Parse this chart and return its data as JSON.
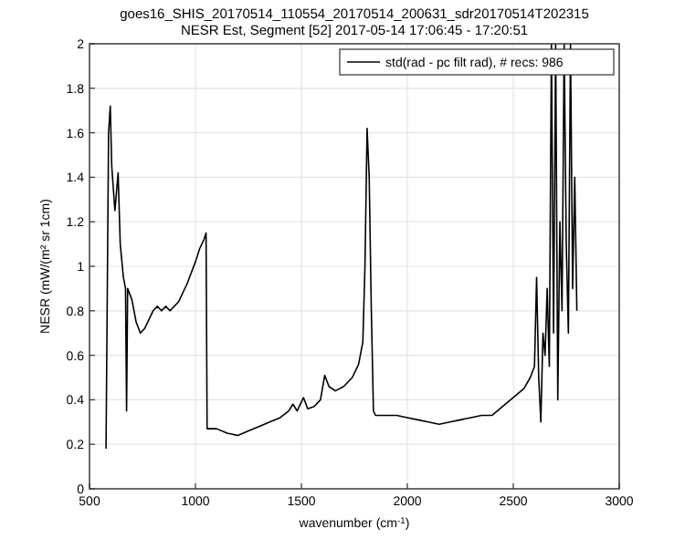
{
  "chart_data": {
    "type": "line",
    "title": "goes16_SHIS_20170514_110554_20170514_200631_sdr20170514T202315",
    "subtitle": "NESR Est, Segment [52] 2017-05-14 17:06:45 - 17:20:51",
    "xlabel": "wavenumber (cm$^{-1}$)",
    "ylabel": "NESR (mW/(m² sr 1cm)",
    "xlim": [
      500,
      3000
    ],
    "ylim": [
      0,
      2
    ],
    "xticks": [
      500,
      1000,
      1500,
      2000,
      2500,
      3000
    ],
    "yticks": [
      0,
      0.2,
      0.4,
      0.6,
      0.8,
      1,
      1.2,
      1.4,
      1.6,
      1.8,
      2
    ],
    "grid": true,
    "legend": "top right",
    "series": [
      {
        "name": "std(rad - pc filt rad), # recs:  986",
        "color": "#000000",
        "x": [
          578,
          590,
          598,
          605,
          620,
          635,
          645,
          660,
          670,
          675,
          680,
          700,
          720,
          740,
          760,
          780,
          800,
          820,
          840,
          860,
          880,
          900,
          920,
          940,
          960,
          980,
          1000,
          1020,
          1040,
          1050,
          1055,
          1080,
          1100,
          1150,
          1200,
          1250,
          1300,
          1350,
          1400,
          1440,
          1460,
          1480,
          1510,
          1530,
          1560,
          1590,
          1610,
          1630,
          1660,
          1700,
          1740,
          1770,
          1790,
          1800,
          1810,
          1820,
          1830,
          1840,
          1850,
          1900,
          1950,
          2000,
          2050,
          2100,
          2150,
          2200,
          2250,
          2300,
          2350,
          2400,
          2450,
          2500,
          2550,
          2580,
          2600,
          2610,
          2620,
          2630,
          2640,
          2650,
          2660,
          2670,
          2680,
          2690,
          2700,
          2710,
          2720,
          2730,
          2740,
          2750,
          2760,
          2770,
          2780,
          2790,
          2800
        ],
        "values": [
          0.18,
          1.6,
          1.72,
          1.45,
          1.25,
          1.42,
          1.1,
          0.95,
          0.9,
          0.35,
          0.9,
          0.85,
          0.75,
          0.7,
          0.72,
          0.76,
          0.8,
          0.82,
          0.8,
          0.82,
          0.8,
          0.82,
          0.84,
          0.88,
          0.92,
          0.97,
          1.02,
          1.08,
          1.12,
          1.15,
          0.27,
          0.27,
          0.27,
          0.25,
          0.24,
          0.26,
          0.28,
          0.3,
          0.32,
          0.35,
          0.38,
          0.35,
          0.41,
          0.36,
          0.37,
          0.4,
          0.51,
          0.46,
          0.44,
          0.46,
          0.5,
          0.56,
          0.66,
          1.0,
          1.62,
          1.4,
          0.8,
          0.35,
          0.33,
          0.33,
          0.33,
          0.32,
          0.31,
          0.3,
          0.29,
          0.3,
          0.31,
          0.32,
          0.33,
          0.33,
          0.37,
          0.41,
          0.45,
          0.5,
          0.55,
          0.95,
          0.5,
          0.3,
          0.7,
          0.6,
          0.9,
          0.55,
          2.0,
          0.7,
          2.0,
          0.4,
          1.2,
          0.8,
          2.0,
          1.1,
          0.7,
          2.0,
          0.9,
          1.4,
          0.8
        ]
      }
    ]
  }
}
